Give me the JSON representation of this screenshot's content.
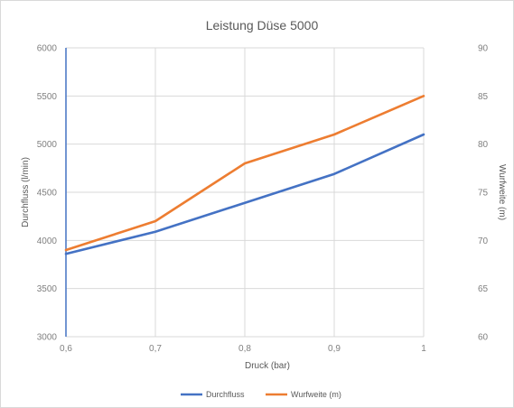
{
  "chart_data": {
    "type": "line",
    "title": "Leistung Düse 5000",
    "xlabel": "Druck (bar)",
    "ylabel": "Durchfluss (l/min)",
    "y2label": "Wurfweite (m)",
    "categories": [
      "0,6",
      "0,7",
      "0,8",
      "0,9",
      "1"
    ],
    "ylim": [
      3000,
      6000
    ],
    "y2lim": [
      60,
      90
    ],
    "yticks": [
      "3000",
      "3500",
      "4000",
      "4500",
      "5000",
      "5500",
      "6000"
    ],
    "y2ticks": [
      "60",
      "65",
      "70",
      "75",
      "80",
      "85",
      "90"
    ],
    "grid": true,
    "legend_position": "bottom",
    "series": [
      {
        "name": "Durchfluss",
        "axis": "left",
        "color": "#4472C4",
        "values": [
          3860,
          4090,
          4390,
          4690,
          5100
        ]
      },
      {
        "name": "Wurfweite (m)",
        "axis": "right",
        "color": "#ED7D31",
        "values": [
          69,
          72,
          78,
          81,
          85
        ]
      }
    ]
  }
}
